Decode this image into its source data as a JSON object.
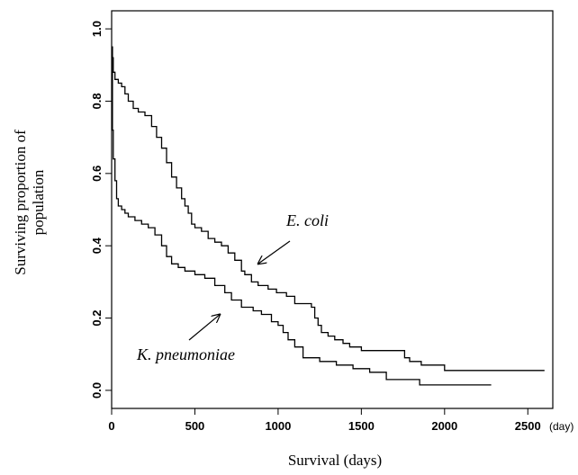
{
  "chart_data": {
    "type": "line",
    "title": "",
    "xlabel": "Survival (days)",
    "x_unit": "(day)",
    "ylabel_lines": [
      "Surviving proportion of",
      "population"
    ],
    "xlim": [
      0,
      2650
    ],
    "ylim": [
      -0.05,
      1.05
    ],
    "x_ticks": [
      0,
      500,
      1000,
      1500,
      2000,
      2500
    ],
    "y_ticks": [
      0.0,
      0.2,
      0.4,
      0.6,
      0.8,
      1.0
    ],
    "y_tick_labels": [
      "0.0",
      "0.2",
      "0.4",
      "0.6",
      "0.8",
      "1.0"
    ],
    "grid": false,
    "series": [
      {
        "name": "E. coli",
        "x": [
          0,
          5,
          10,
          20,
          40,
          60,
          80,
          100,
          130,
          160,
          200,
          240,
          270,
          300,
          330,
          360,
          390,
          420,
          440,
          460,
          480,
          500,
          540,
          580,
          620,
          660,
          700,
          740,
          780,
          800,
          840,
          880,
          940,
          990,
          1050,
          1100,
          1150,
          1200,
          1220,
          1240,
          1260,
          1300,
          1340,
          1390,
          1430,
          1500,
          1600,
          1700,
          1760,
          1790,
          1860,
          2000,
          2600
        ],
        "y": [
          0.95,
          0.92,
          0.88,
          0.86,
          0.85,
          0.84,
          0.82,
          0.8,
          0.78,
          0.77,
          0.76,
          0.73,
          0.7,
          0.67,
          0.63,
          0.59,
          0.56,
          0.53,
          0.51,
          0.49,
          0.46,
          0.45,
          0.44,
          0.42,
          0.41,
          0.4,
          0.38,
          0.36,
          0.33,
          0.32,
          0.3,
          0.29,
          0.28,
          0.27,
          0.26,
          0.24,
          0.24,
          0.23,
          0.2,
          0.18,
          0.16,
          0.15,
          0.14,
          0.13,
          0.12,
          0.11,
          0.11,
          0.11,
          0.09,
          0.08,
          0.07,
          0.055,
          0.055
        ]
      },
      {
        "name": "K. pneumoniae",
        "x": [
          0,
          5,
          10,
          20,
          30,
          40,
          60,
          80,
          100,
          140,
          180,
          220,
          260,
          300,
          330,
          360,
          400,
          440,
          500,
          560,
          620,
          680,
          720,
          780,
          850,
          900,
          960,
          1000,
          1030,
          1060,
          1100,
          1150,
          1250,
          1350,
          1450,
          1550,
          1650,
          1850,
          2280
        ],
        "y": [
          0.95,
          0.72,
          0.64,
          0.58,
          0.53,
          0.51,
          0.5,
          0.49,
          0.48,
          0.47,
          0.46,
          0.45,
          0.43,
          0.4,
          0.37,
          0.35,
          0.34,
          0.33,
          0.32,
          0.31,
          0.29,
          0.27,
          0.25,
          0.23,
          0.22,
          0.21,
          0.19,
          0.18,
          0.16,
          0.14,
          0.12,
          0.09,
          0.08,
          0.07,
          0.06,
          0.05,
          0.03,
          0.015,
          0.015
        ]
      }
    ],
    "annotations": [
      {
        "text": "E. coli",
        "series": "E. coli",
        "arrow_to": [
          880,
          0.35
        ]
      },
      {
        "text": "K. pneumoniae",
        "series": "K. pneumoniae",
        "arrow_to": [
          650,
          0.21
        ]
      }
    ]
  }
}
